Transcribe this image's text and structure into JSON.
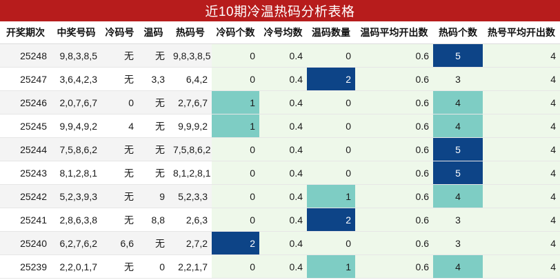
{
  "title": "近10期冷温热码分析表格",
  "headers": [
    "开奖期次",
    "中奖号码",
    "冷码号",
    "温码",
    "热码号",
    "冷码个数",
    "冷号均数",
    "温码数量",
    "温码平均开出数",
    "热码个数",
    "热号平均开出数"
  ],
  "rows": [
    {
      "period": "25248",
      "numbers": "9,8,3,8,5",
      "cold": "无",
      "warm": "无",
      "hot": "9,8,3,8,5",
      "cold_count": "0",
      "cold_avg": "0.4",
      "warm_count": "0",
      "warm_avg": "0.6",
      "hot_count": "5",
      "hot_avg": "4"
    },
    {
      "period": "25247",
      "numbers": "3,6,4,2,3",
      "cold": "无",
      "warm": "3,3",
      "hot": "6,4,2",
      "cold_count": "0",
      "cold_avg": "0.4",
      "warm_count": "2",
      "warm_avg": "0.6",
      "hot_count": "3",
      "hot_avg": "4"
    },
    {
      "period": "25246",
      "numbers": "2,0,7,6,7",
      "cold": "0",
      "warm": "无",
      "hot": "2,7,6,7",
      "cold_count": "1",
      "cold_avg": "0.4",
      "warm_count": "0",
      "warm_avg": "0.6",
      "hot_count": "4",
      "hot_avg": "4"
    },
    {
      "period": "25245",
      "numbers": "9,9,4,9,2",
      "cold": "4",
      "warm": "无",
      "hot": "9,9,9,2",
      "cold_count": "1",
      "cold_avg": "0.4",
      "warm_count": "0",
      "warm_avg": "0.6",
      "hot_count": "4",
      "hot_avg": "4"
    },
    {
      "period": "25244",
      "numbers": "7,5,8,6,2",
      "cold": "无",
      "warm": "无",
      "hot": "7,5,8,6,2",
      "cold_count": "0",
      "cold_avg": "0.4",
      "warm_count": "0",
      "warm_avg": "0.6",
      "hot_count": "5",
      "hot_avg": "4"
    },
    {
      "period": "25243",
      "numbers": "8,1,2,8,1",
      "cold": "无",
      "warm": "无",
      "hot": "8,1,2,8,1",
      "cold_count": "0",
      "cold_avg": "0.4",
      "warm_count": "0",
      "warm_avg": "0.6",
      "hot_count": "5",
      "hot_avg": "4"
    },
    {
      "period": "25242",
      "numbers": "5,2,3,9,3",
      "cold": "无",
      "warm": "9",
      "hot": "5,2,3,3",
      "cold_count": "0",
      "cold_avg": "0.4",
      "warm_count": "1",
      "warm_avg": "0.6",
      "hot_count": "4",
      "hot_avg": "4"
    },
    {
      "period": "25241",
      "numbers": "2,8,6,3,8",
      "cold": "无",
      "warm": "8,8",
      "hot": "2,6,3",
      "cold_count": "0",
      "cold_avg": "0.4",
      "warm_count": "2",
      "warm_avg": "0.6",
      "hot_count": "3",
      "hot_avg": "4"
    },
    {
      "period": "25240",
      "numbers": "6,2,7,6,2",
      "cold": "6,6",
      "warm": "无",
      "hot": "2,7,2",
      "cold_count": "2",
      "cold_avg": "0.4",
      "warm_count": "0",
      "warm_avg": "0.6",
      "hot_count": "3",
      "hot_avg": "4"
    },
    {
      "period": "25239",
      "numbers": "2,2,0,1,7",
      "cold": "无",
      "warm": "0",
      "hot": "2,2,1,7",
      "cold_count": "0",
      "cold_avg": "0.4",
      "warm_count": "1",
      "warm_avg": "0.6",
      "hot_count": "4",
      "hot_avg": "4"
    }
  ],
  "colors": {
    "title_bg": "#b71c1c",
    "highlight_light": "#7ecdc4",
    "highlight_dark": "#0d4487",
    "green_column_bg": "#eef8ea"
  }
}
